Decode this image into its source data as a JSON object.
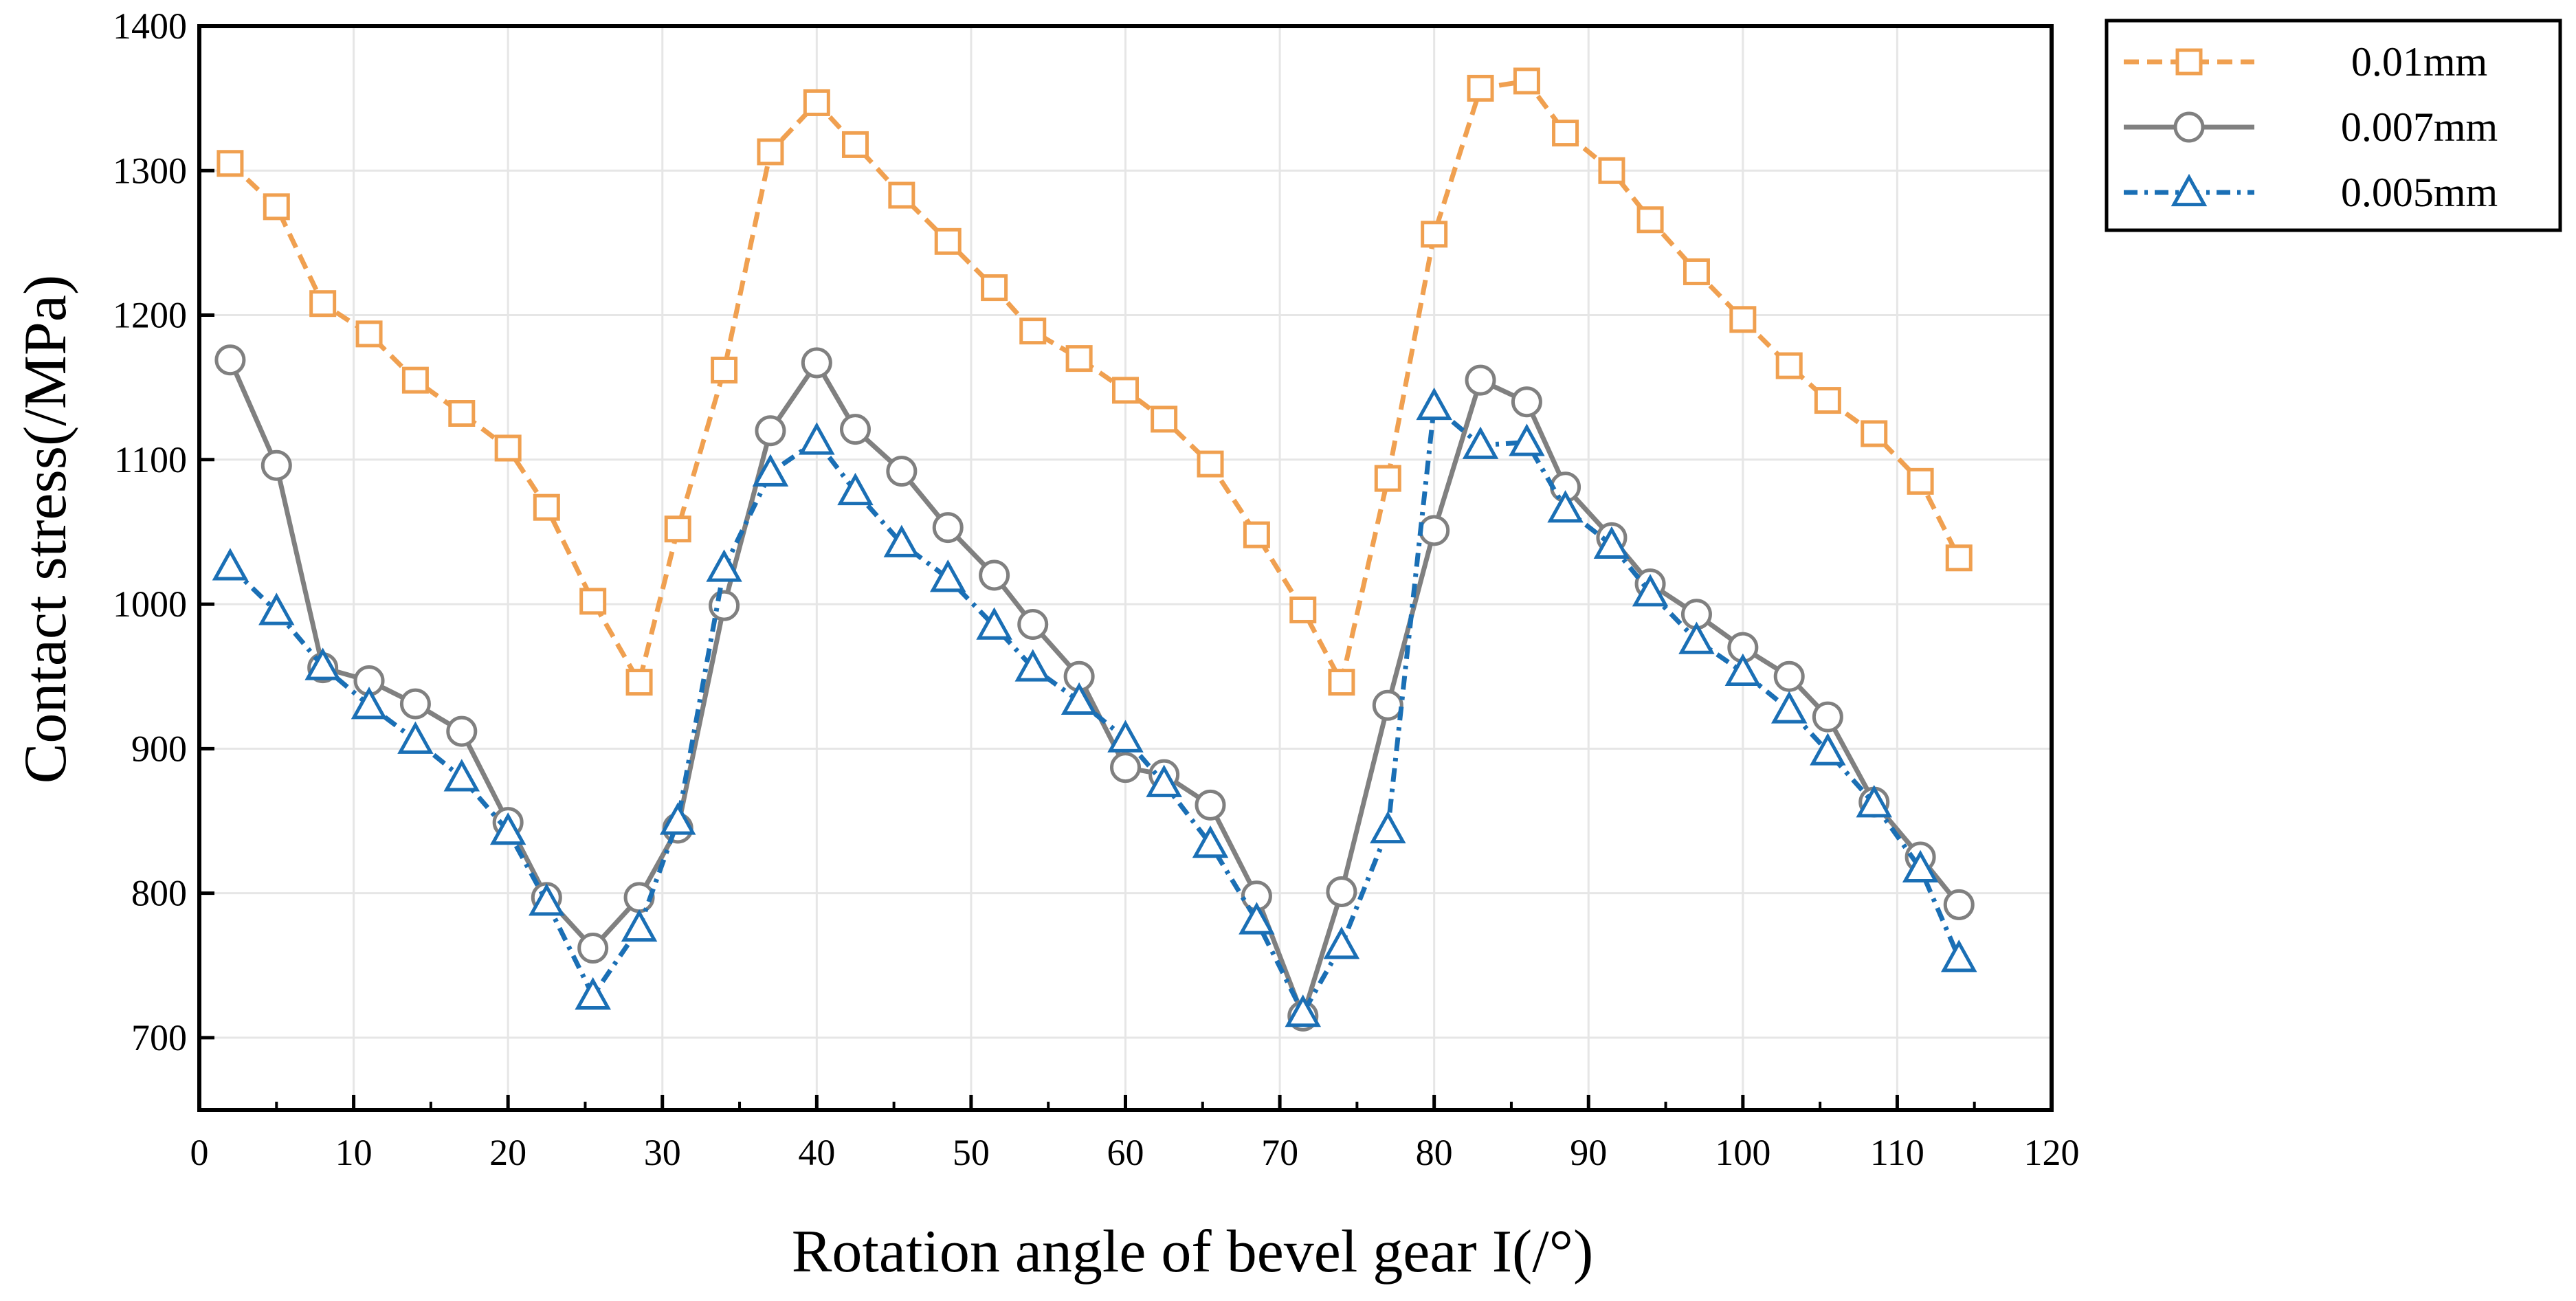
{
  "chart_data": {
    "type": "line",
    "title": "",
    "xlabel": "Rotation angle of bevel gear I(/°)",
    "ylabel": "Contact stress(/MPa)",
    "xlim": [
      0,
      120
    ],
    "ylim": [
      650,
      1400
    ],
    "xticks": [
      0,
      10,
      20,
      30,
      40,
      50,
      60,
      70,
      80,
      90,
      100,
      110,
      120
    ],
    "yticks": [
      700,
      800,
      900,
      1000,
      1100,
      1200,
      1300,
      1400
    ],
    "grid": true,
    "legend_position": "outside-top-right",
    "series": [
      {
        "name": "0.01mm",
        "color": "#F0A050",
        "line_style": "dashed",
        "marker": "square",
        "x": [
          2,
          5,
          8,
          11,
          14,
          17,
          20,
          22.5,
          25.5,
          28.5,
          31,
          34,
          37,
          40,
          42.5,
          45.5,
          48.5,
          51.5,
          54,
          57,
          60,
          62.5,
          65.5,
          68.5,
          71.5,
          74,
          77,
          80,
          83,
          86,
          88.5,
          91.5,
          94,
          97,
          100,
          103,
          105.5,
          108.5,
          111.5,
          114
        ],
        "y": [
          1305,
          1275,
          1208,
          1187,
          1155,
          1132,
          1108,
          1067,
          1002,
          946,
          1052,
          1162,
          1313,
          1347,
          1318,
          1283,
          1251,
          1219,
          1189,
          1170,
          1148,
          1128,
          1097,
          1048,
          996,
          946,
          1087,
          1256,
          1357,
          1362,
          1326,
          1300,
          1266,
          1230,
          1197,
          1165,
          1141,
          1118,
          1085,
          1032
        ]
      },
      {
        "name": "0.007mm",
        "color": "#808080",
        "line_style": "solid",
        "marker": "circle",
        "x": [
          2,
          5,
          8,
          11,
          14,
          17,
          20,
          22.5,
          25.5,
          28.5,
          31,
          34,
          37,
          40,
          42.5,
          45.5,
          48.5,
          51.5,
          54,
          57,
          60,
          62.5,
          65.5,
          68.5,
          71.5,
          74,
          77,
          80,
          83,
          86,
          88.5,
          91.5,
          94,
          97,
          100,
          103,
          105.5,
          108.5,
          111.5,
          114
        ],
        "y": [
          1169,
          1096,
          956,
          947,
          931,
          912,
          849,
          797,
          762,
          797,
          845,
          999,
          1120,
          1167,
          1121,
          1092,
          1053,
          1020,
          986,
          950,
          887,
          882,
          861,
          798,
          715,
          801,
          930,
          1051,
          1155,
          1140,
          1081,
          1046,
          1014,
          993,
          970,
          950,
          922,
          863,
          825,
          792
        ]
      },
      {
        "name": "0.005mm",
        "color": "#1A6FB5",
        "line_style": "dash-dot",
        "marker": "triangle",
        "x": [
          2,
          5,
          8,
          11,
          14,
          17,
          20,
          22.5,
          25.5,
          28.5,
          31,
          34,
          37,
          40,
          42.5,
          45.5,
          48.5,
          51.5,
          54,
          57,
          60,
          62.5,
          65.5,
          68.5,
          71.5,
          74,
          77,
          80,
          83,
          86,
          88.5,
          91.5,
          94,
          97,
          100,
          103,
          105.5,
          108.5,
          111.5,
          114
        ],
        "y": [
          1026,
          995,
          957,
          930,
          906,
          880,
          843,
          794,
          729,
          776,
          850,
          1025,
          1091,
          1113,
          1078,
          1042,
          1018,
          985,
          956,
          933,
          907,
          876,
          834,
          781,
          717,
          764,
          844,
          1137,
          1110,
          1112,
          1066,
          1041,
          1008,
          975,
          953,
          927,
          898,
          862,
          817,
          755
        ]
      }
    ]
  }
}
